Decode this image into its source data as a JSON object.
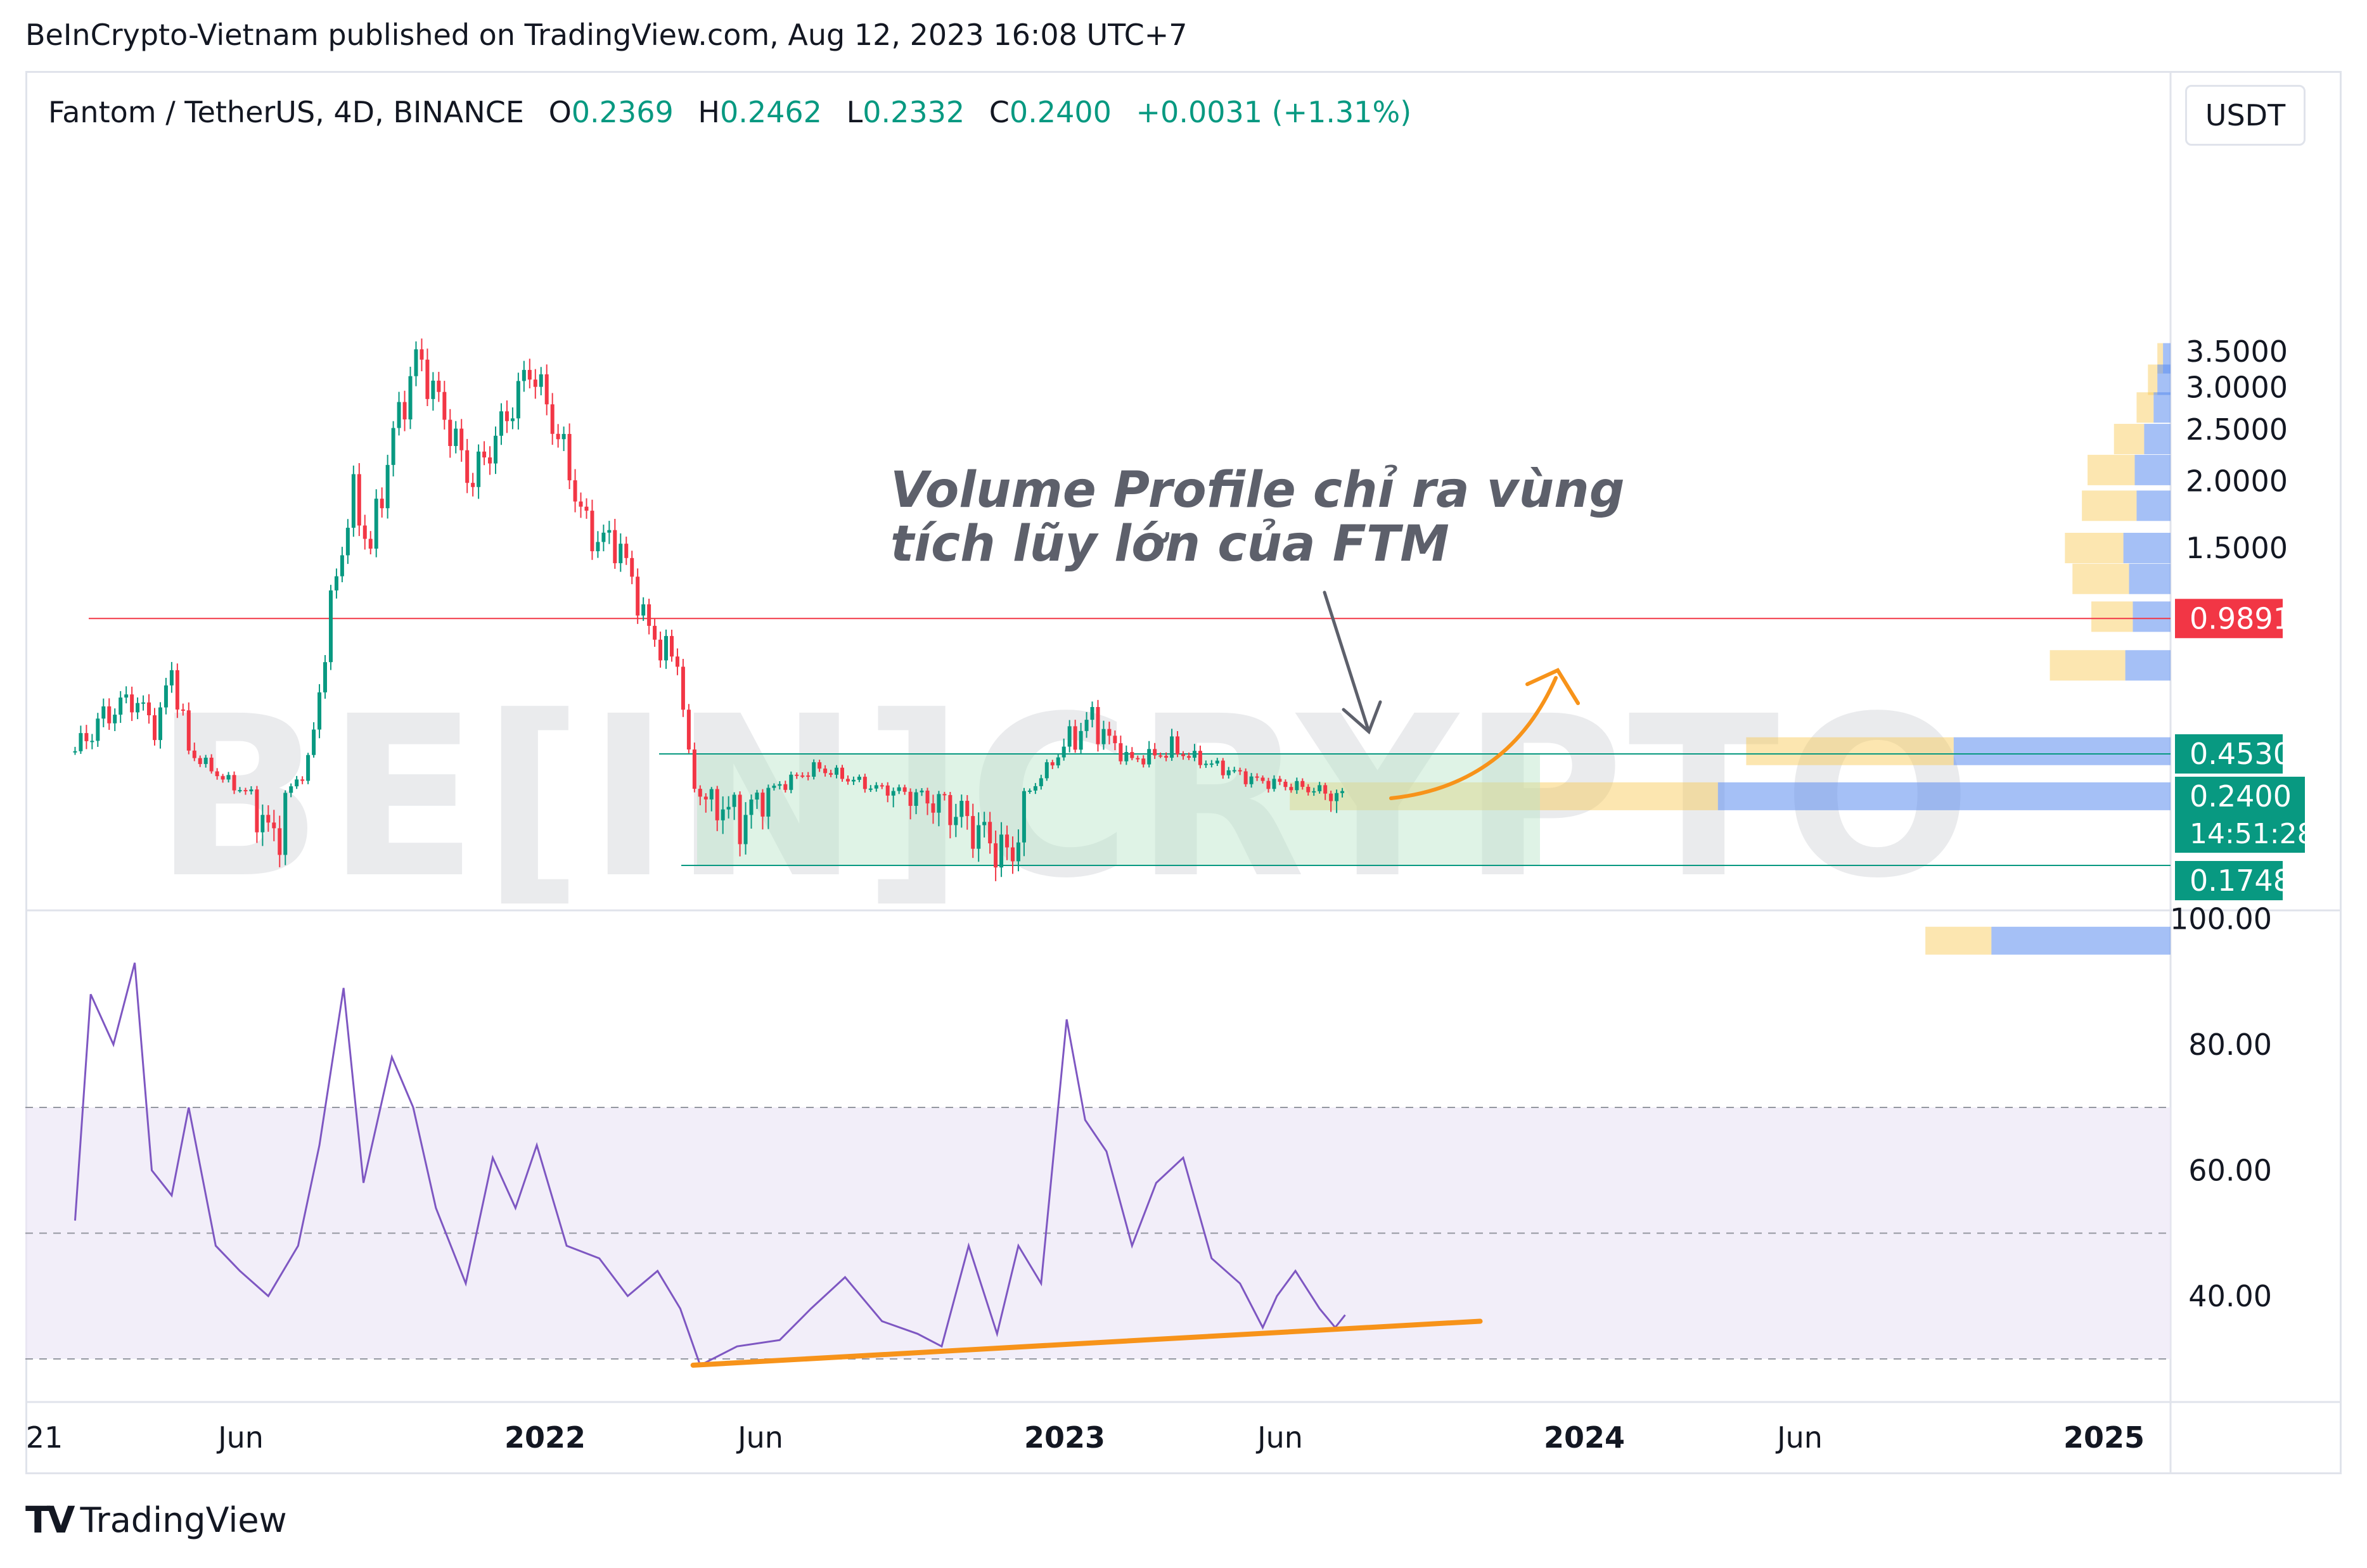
{
  "header": {
    "published": "BeInCrypto-Vietnam published on TradingView.com, Aug 12, 2023 16:08 UTC+7"
  },
  "legend": {
    "symbol": "Fantom / TetherUS, 4D, BINANCE",
    "open_label": "O",
    "open": "0.2369",
    "high_label": "H",
    "high": "0.2462",
    "low_label": "L",
    "low": "0.2332",
    "close_label": "C",
    "close": "0.2400",
    "change": "+0.0031 (+1.31%)"
  },
  "currency": "USDT",
  "watermark": "BE[IN]CRYPTO",
  "annotation": {
    "line1": "Volume Profile chỉ ra vùng",
    "line2": "tích lũy lớn của FTM"
  },
  "footer": {
    "brand": "TradingView",
    "logo_icon": "tradingview-logo-icon"
  },
  "colors": {
    "up": "#089981",
    "down": "#f23645",
    "rsi": "#7e57c2",
    "rsi_band": "#ede7f6",
    "accent_orange": "#f7931a",
    "vp_up": "#5b8def",
    "vp_down": "#f9c74f",
    "resistance": "#f23645",
    "zone": "#b7e4c7"
  },
  "chart_data": [
    {
      "type": "candlestick",
      "symbol": "Fantom / TetherUS",
      "interval": "4D",
      "x_ticks": [
        "21",
        "Jun",
        "2022",
        "Jun",
        "2023",
        "Jun",
        "2024",
        "Jun",
        "2025"
      ],
      "y_ticks": [
        "3.5000",
        "3.0000",
        "2.5000",
        "2.0000",
        "1.5000"
      ],
      "ylim": [
        0.05,
        3.5
      ],
      "price_labels": [
        {
          "value": 0.9891,
          "text": "0.9891",
          "kind": "resistance"
        },
        {
          "value": 0.453,
          "text": "0.4530",
          "kind": "zone-top"
        },
        {
          "value": 0.24,
          "text": "0.2400",
          "kind": "last",
          "countdown": "14:51:28"
        },
        {
          "value": 0.1748,
          "text": "0.1748",
          "kind": "zone-bottom"
        }
      ],
      "horizontal_lines": [
        0.9891
      ],
      "accumulation_zone": [
        0.1748,
        0.453
      ],
      "close_path": [
        {
          "d": "2021-03-01",
          "c": 0.45
        },
        {
          "d": "2021-03-20",
          "c": 0.55
        },
        {
          "d": "2021-04-10",
          "c": 0.62
        },
        {
          "d": "2021-04-28",
          "c": 0.52
        },
        {
          "d": "2021-05-08",
          "c": 0.74
        },
        {
          "d": "2021-05-20",
          "c": 0.45
        },
        {
          "d": "2021-06-15",
          "c": 0.3
        },
        {
          "d": "2021-07-20",
          "c": 0.2
        },
        {
          "d": "2021-08-10",
          "c": 0.35
        },
        {
          "d": "2021-08-30",
          "c": 1.2
        },
        {
          "d": "2021-09-12",
          "c": 1.9
        },
        {
          "d": "2021-09-25",
          "c": 1.5
        },
        {
          "d": "2021-10-10",
          "c": 2.4
        },
        {
          "d": "2021-10-28",
          "c": 3.45
        },
        {
          "d": "2021-11-15",
          "c": 2.7
        },
        {
          "d": "2021-12-05",
          "c": 2.0
        },
        {
          "d": "2021-12-25",
          "c": 2.5
        },
        {
          "d": "2022-01-16",
          "c": 3.3
        },
        {
          "d": "2022-02-05",
          "c": 2.4
        },
        {
          "d": "2022-02-25",
          "c": 1.6
        },
        {
          "d": "2022-03-20",
          "c": 1.5
        },
        {
          "d": "2022-04-10",
          "c": 0.9
        },
        {
          "d": "2022-05-01",
          "c": 0.75
        },
        {
          "d": "2022-05-12",
          "c": 0.25
        },
        {
          "d": "2022-06-15",
          "c": 0.22
        },
        {
          "d": "2022-08-05",
          "c": 0.36
        },
        {
          "d": "2022-09-15",
          "c": 0.27
        },
        {
          "d": "2022-11-08",
          "c": 0.23
        },
        {
          "d": "2022-12-20",
          "c": 0.19
        },
        {
          "d": "2023-01-25",
          "c": 0.46
        },
        {
          "d": "2023-02-15",
          "c": 0.55
        },
        {
          "d": "2023-03-15",
          "c": 0.4
        },
        {
          "d": "2023-04-15",
          "c": 0.45
        },
        {
          "d": "2023-06-10",
          "c": 0.3
        },
        {
          "d": "2023-07-15",
          "c": 0.27
        },
        {
          "d": "2023-08-12",
          "c": 0.24
        }
      ],
      "volume_profile": [
        {
          "price": 3.4,
          "up": 8,
          "down": 6
        },
        {
          "price": 3.1,
          "up": 14,
          "down": 10
        },
        {
          "price": 2.75,
          "up": 18,
          "down": 18
        },
        {
          "price": 2.4,
          "up": 28,
          "down": 32
        },
        {
          "price": 2.1,
          "up": 38,
          "down": 50
        },
        {
          "price": 1.8,
          "up": 36,
          "down": 58
        },
        {
          "price": 1.5,
          "up": 50,
          "down": 62
        },
        {
          "price": 1.25,
          "up": 44,
          "down": 60
        },
        {
          "price": 1.0,
          "up": 40,
          "down": 44
        },
        {
          "price": 0.75,
          "up": 48,
          "down": 80
        },
        {
          "price": 0.45,
          "up": 230,
          "down": 220
        },
        {
          "price": 0.24,
          "up": 480,
          "down": 454
        },
        {
          "price": 0.14,
          "up": 190,
          "down": 70
        }
      ]
    },
    {
      "type": "line",
      "indicator": "RSI",
      "y_ticks": [
        "100.00",
        "80.00",
        "60.00",
        "40.00"
      ],
      "ylim": [
        25,
        100
      ],
      "bands": {
        "upper": 70,
        "middle": 50,
        "lower": 30
      },
      "points": [
        {
          "d": "2021-03-01",
          "v": 52
        },
        {
          "d": "2021-03-12",
          "v": 88
        },
        {
          "d": "2021-03-28",
          "v": 80
        },
        {
          "d": "2021-04-12",
          "v": 93
        },
        {
          "d": "2021-04-24",
          "v": 60
        },
        {
          "d": "2021-05-08",
          "v": 56
        },
        {
          "d": "2021-05-20",
          "v": 70
        },
        {
          "d": "2021-06-08",
          "v": 48
        },
        {
          "d": "2021-06-25",
          "v": 44
        },
        {
          "d": "2021-07-15",
          "v": 40
        },
        {
          "d": "2021-08-05",
          "v": 48
        },
        {
          "d": "2021-08-20",
          "v": 64
        },
        {
          "d": "2021-09-06",
          "v": 89
        },
        {
          "d": "2021-09-20",
          "v": 58
        },
        {
          "d": "2021-10-10",
          "v": 78
        },
        {
          "d": "2021-10-25",
          "v": 70
        },
        {
          "d": "2021-11-10",
          "v": 54
        },
        {
          "d": "2021-12-01",
          "v": 42
        },
        {
          "d": "2021-12-20",
          "v": 62
        },
        {
          "d": "2022-01-05",
          "v": 54
        },
        {
          "d": "2022-01-20",
          "v": 64
        },
        {
          "d": "2022-02-10",
          "v": 48
        },
        {
          "d": "2022-03-05",
          "v": 46
        },
        {
          "d": "2022-03-25",
          "v": 40
        },
        {
          "d": "2022-04-15",
          "v": 44
        },
        {
          "d": "2022-05-01",
          "v": 38
        },
        {
          "d": "2022-05-15",
          "v": 29
        },
        {
          "d": "2022-06-10",
          "v": 32
        },
        {
          "d": "2022-07-10",
          "v": 33
        },
        {
          "d": "2022-08-01",
          "v": 38
        },
        {
          "d": "2022-08-25",
          "v": 43
        },
        {
          "d": "2022-09-20",
          "v": 36
        },
        {
          "d": "2022-10-15",
          "v": 34
        },
        {
          "d": "2022-11-01",
          "v": 32
        },
        {
          "d": "2022-11-20",
          "v": 48
        },
        {
          "d": "2022-12-10",
          "v": 34
        },
        {
          "d": "2022-12-25",
          "v": 48
        },
        {
          "d": "2023-01-10",
          "v": 42
        },
        {
          "d": "2023-01-28",
          "v": 84
        },
        {
          "d": "2023-02-10",
          "v": 68
        },
        {
          "d": "2023-02-25",
          "v": 63
        },
        {
          "d": "2023-03-15",
          "v": 48
        },
        {
          "d": "2023-04-01",
          "v": 58
        },
        {
          "d": "2023-04-20",
          "v": 62
        },
        {
          "d": "2023-05-10",
          "v": 46
        },
        {
          "d": "2023-05-30",
          "v": 42
        },
        {
          "d": "2023-06-15",
          "v": 35
        },
        {
          "d": "2023-06-25",
          "v": 40
        },
        {
          "d": "2023-07-08",
          "v": 44
        },
        {
          "d": "2023-07-25",
          "v": 38
        },
        {
          "d": "2023-08-05",
          "v": 35
        },
        {
          "d": "2023-08-12",
          "v": 37
        }
      ],
      "trendline": [
        {
          "d": "2022-05-10",
          "v": 29
        },
        {
          "d": "2023-11-15",
          "v": 36
        }
      ]
    }
  ]
}
